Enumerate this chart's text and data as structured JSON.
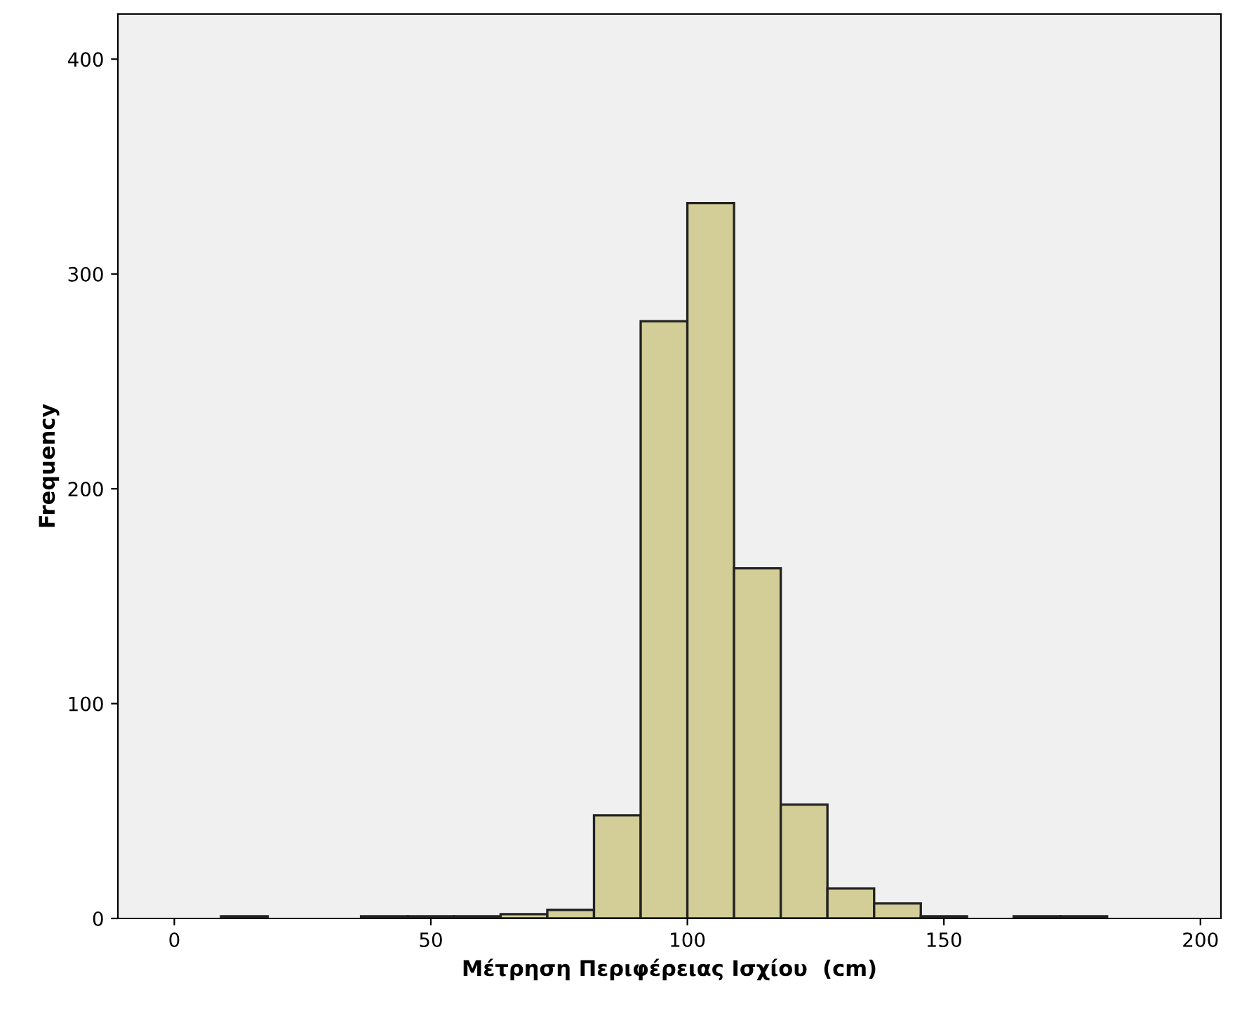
{
  "chart_data": {
    "type": "histogram",
    "xlabel": "Μέτρηση Περιφέρειας Ισχίου  (cm)",
    "ylabel": "Frequency",
    "bins": [
      9.1,
      18.2,
      36.4,
      45.5,
      54.5,
      63.6,
      72.7,
      81.8,
      90.9,
      100,
      109.1,
      118.2,
      127.3,
      136.4,
      145.5,
      154.5,
      163.6,
      172.7,
      181.8
    ],
    "values": [
      1,
      0,
      1,
      1,
      1,
      2,
      4,
      48,
      278,
      333,
      163,
      53,
      14,
      7,
      1,
      0,
      1,
      1
    ],
    "color": "#d3ce97",
    "xlim": [
      -11,
      204
    ],
    "xticks": [
      0,
      50,
      100,
      150,
      200
    ],
    "ylim": [
      0,
      421
    ],
    "yticks": [
      0,
      100,
      200,
      300,
      400
    ],
    "grid": false
  }
}
